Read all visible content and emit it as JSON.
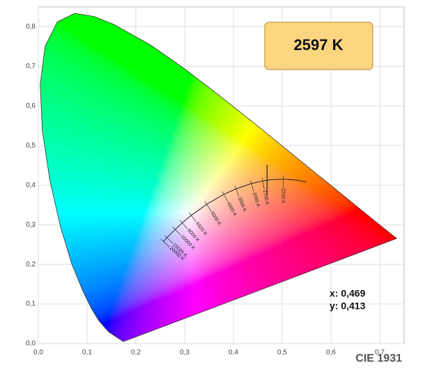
{
  "chart_data": {
    "type": "chromaticity",
    "title": "CIE 1931",
    "cct_label": "2597 K",
    "xlim": [
      0,
      0.75
    ],
    "ylim": [
      0,
      0.85
    ],
    "xticks": [
      {
        "value": 0,
        "label": "0,0"
      },
      {
        "value": 0.1,
        "label": "0,1"
      },
      {
        "value": 0.2,
        "label": "0,2"
      },
      {
        "value": 0.3,
        "label": "0,3"
      },
      {
        "value": 0.4,
        "label": "0,4"
      },
      {
        "value": 0.5,
        "label": "0,5"
      },
      {
        "value": 0.6,
        "label": "0,6"
      },
      {
        "value": 0.7,
        "label": "0,7"
      }
    ],
    "yticks": [
      {
        "value": 0,
        "label": "0,0"
      },
      {
        "value": 0.1,
        "label": "0,1"
      },
      {
        "value": 0.2,
        "label": "0,2"
      },
      {
        "value": 0.3,
        "label": "0,3"
      },
      {
        "value": 0.4,
        "label": "0,4"
      },
      {
        "value": 0.5,
        "label": "0,5"
      },
      {
        "value": 0.6,
        "label": "0,6"
      },
      {
        "value": 0.7,
        "label": "0,7"
      },
      {
        "value": 0.8,
        "label": "0,8"
      }
    ],
    "grid": true,
    "locus": {
      "x": [
        0.1741,
        0.144,
        0.1241,
        0.1096,
        0.0913,
        0.0687,
        0.0454,
        0.0235,
        0.0082,
        0.0039,
        0.0139,
        0.0389,
        0.0743,
        0.1142,
        0.1547,
        0.2296,
        0.3016,
        0.3731,
        0.4441,
        0.5125,
        0.5752,
        0.627,
        0.6915,
        0.7347
      ],
      "y": [
        0.005,
        0.0297,
        0.0578,
        0.0868,
        0.1327,
        0.2007,
        0.295,
        0.4127,
        0.5384,
        0.6548,
        0.7502,
        0.812,
        0.8338,
        0.8262,
        0.8059,
        0.7543,
        0.6923,
        0.6245,
        0.5547,
        0.4866,
        0.4242,
        0.3725,
        0.3083,
        0.2653
      ]
    },
    "planckian": {
      "x": [
        0.5496,
        0.5267,
        0.502,
        0.477,
        0.4599,
        0.4369,
        0.4053,
        0.3805,
        0.3451,
        0.3135,
        0.2952,
        0.2807,
        0.2637,
        0.2565
      ],
      "y": [
        0.4081,
        0.4133,
        0.4152,
        0.4137,
        0.4106,
        0.4041,
        0.3907,
        0.3768,
        0.3516,
        0.3236,
        0.3048,
        0.2883,
        0.2675,
        0.2577
      ],
      "labels": [
        null,
        null,
        "2200 K",
        null,
        "2700 K",
        "3000 K",
        "3500 K",
        "4000 K",
        "5000 K",
        "6500 K",
        "8000 K",
        "10000 K",
        "15000 K",
        "20000 K"
      ]
    },
    "point": {
      "x": 0.469,
      "y": 0.413,
      "x_label": "x: 0,469",
      "y_label": "y: 0,413"
    }
  }
}
